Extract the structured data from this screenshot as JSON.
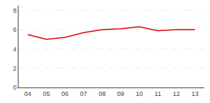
{
  "chart_data": {
    "type": "line",
    "categories": [
      "04",
      "05",
      "06",
      "07",
      "08",
      "09",
      "10",
      "11",
      "12",
      "13"
    ],
    "values": [
      5.5,
      5.0,
      5.2,
      5.7,
      6.0,
      6.1,
      6.3,
      5.9,
      6.0,
      6.0
    ],
    "color": "#dd0000",
    "ylim": [
      0,
      8.5
    ],
    "yticks": [
      0,
      2,
      4,
      6,
      8
    ],
    "grid": true
  }
}
